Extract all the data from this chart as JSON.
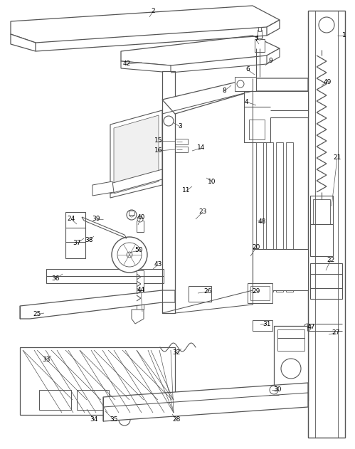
{
  "bg_color": "#ffffff",
  "line_color": "#555555",
  "figsize": [
    4.99,
    6.31
  ],
  "dpi": 100
}
